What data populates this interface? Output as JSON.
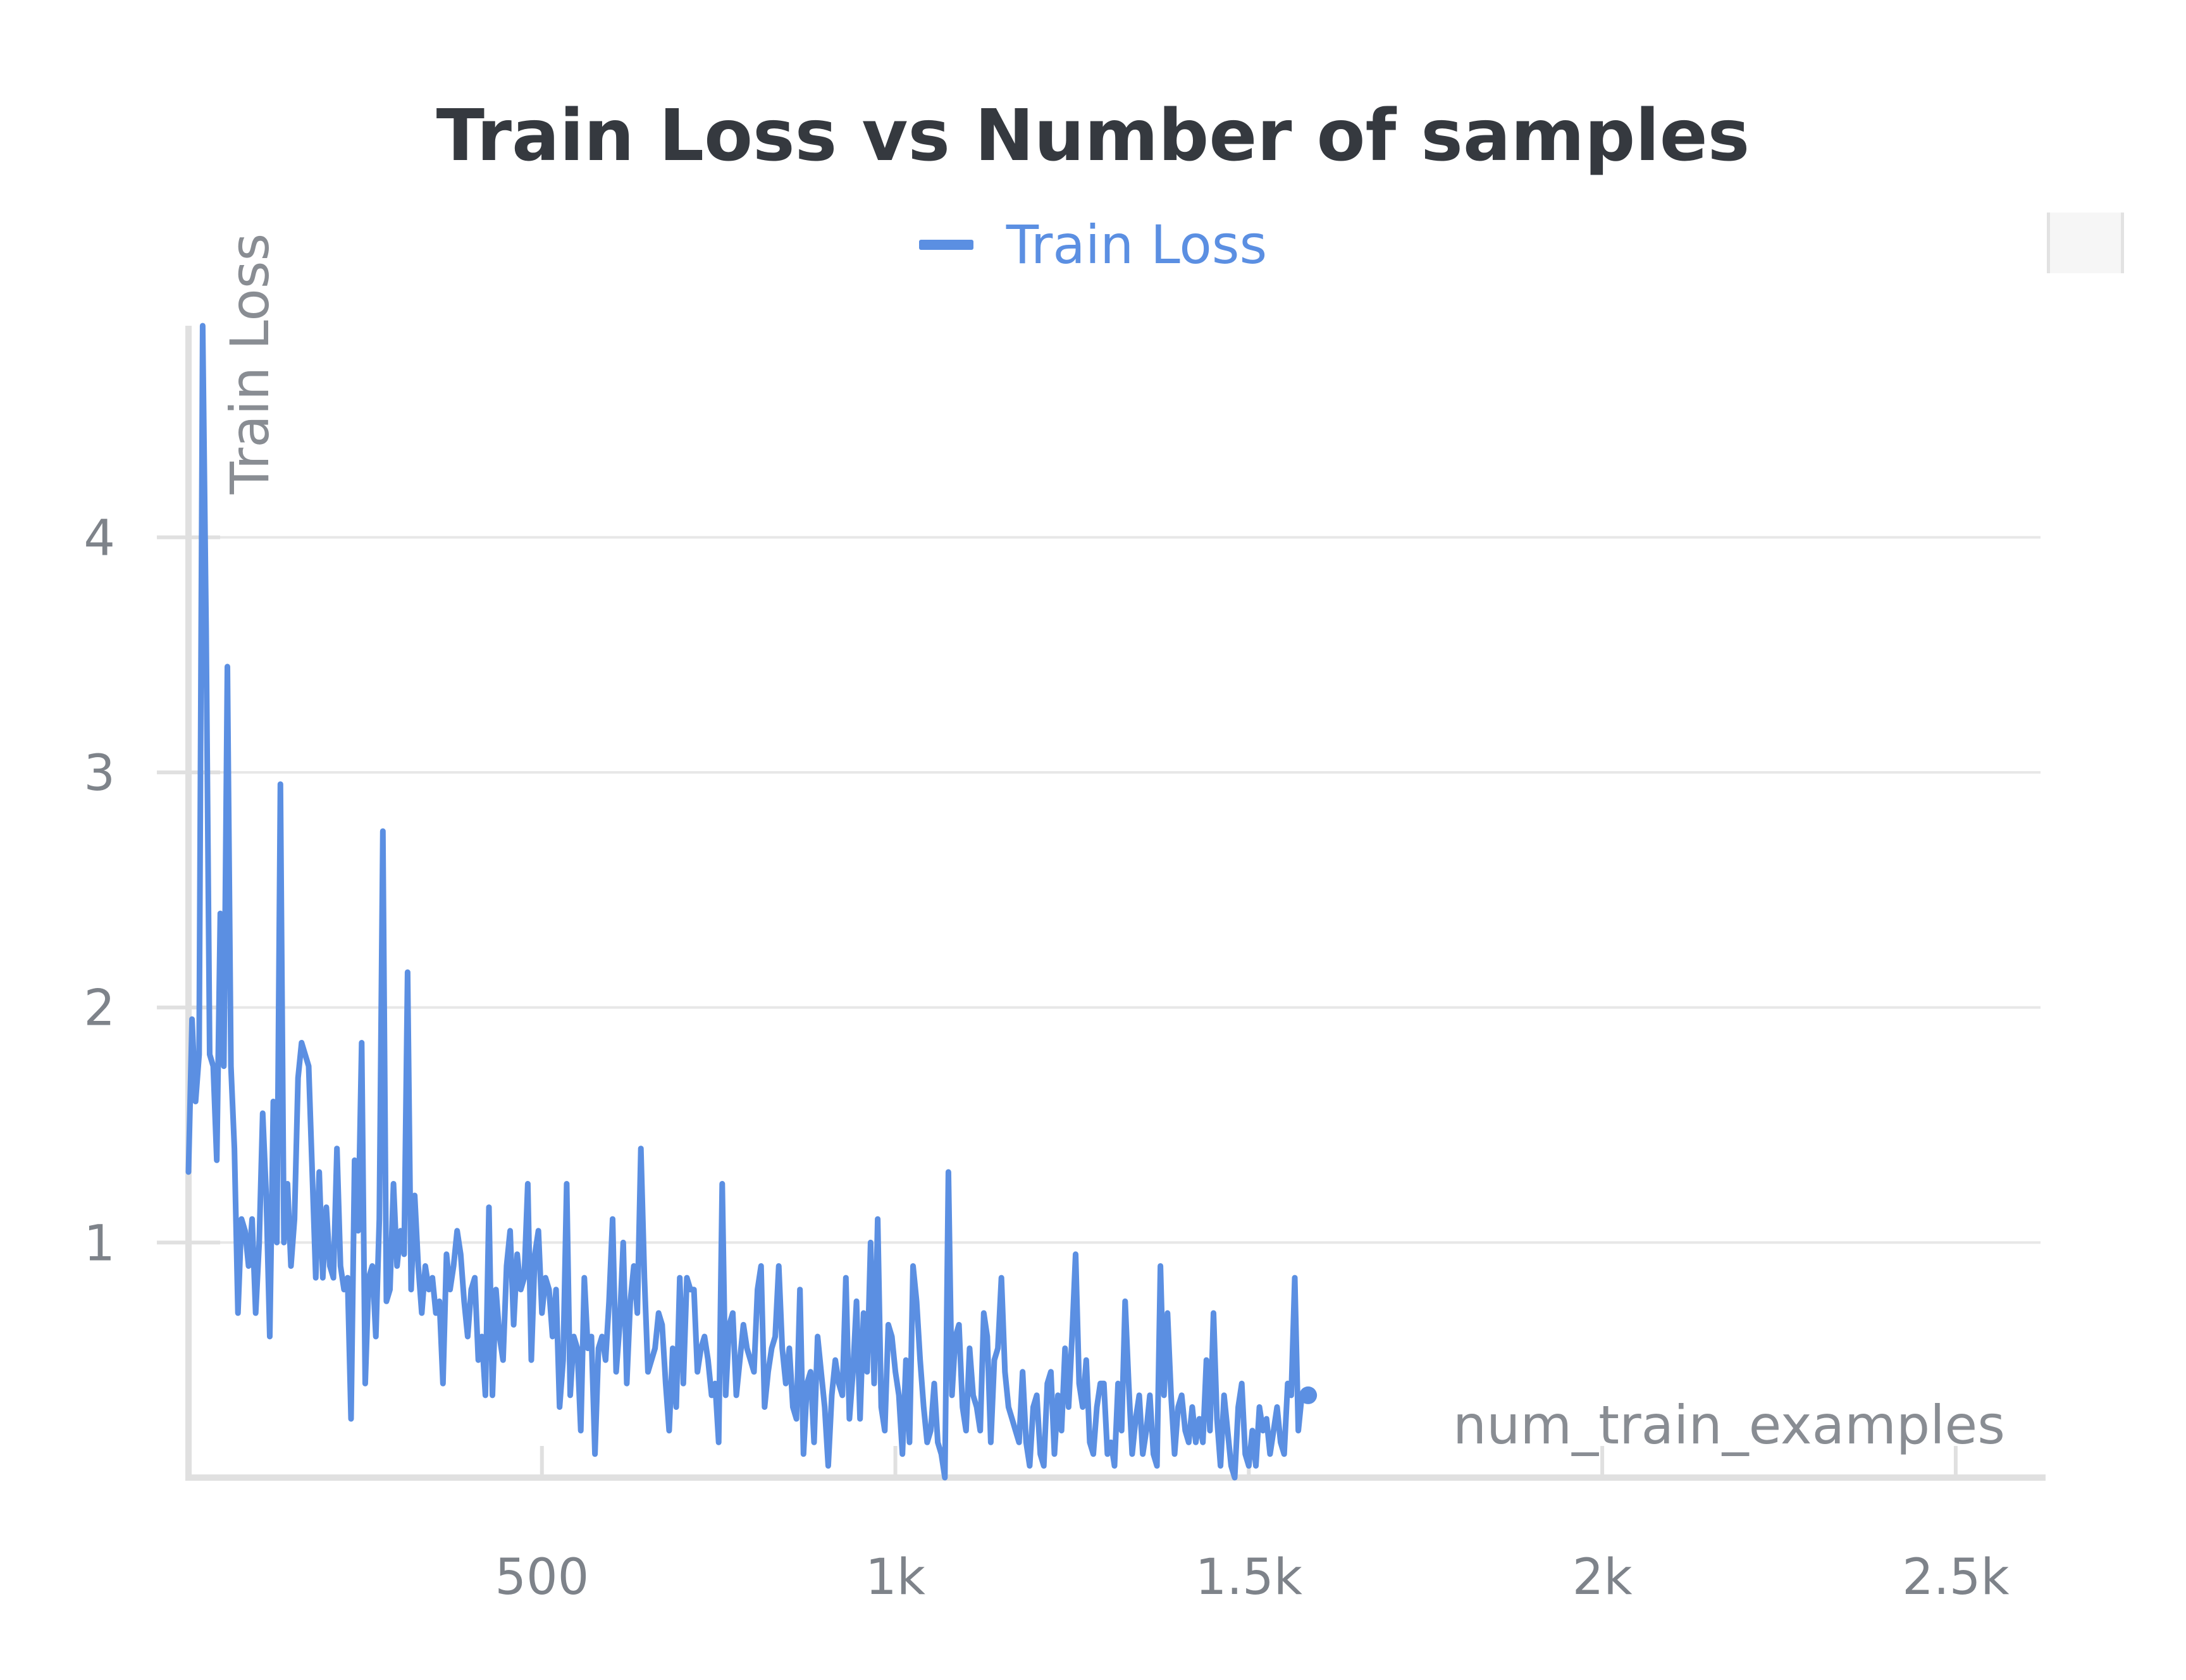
{
  "chart_data": {
    "type": "line",
    "title": "Train Loss vs Number of samples",
    "xlabel": "num_train_examples",
    "ylabel": "Train Loss",
    "xlim": [
      0,
      2620
    ],
    "ylim": [
      0,
      4.9
    ],
    "x_ticks": [
      {
        "value": 500,
        "label": "500"
      },
      {
        "value": 1000,
        "label": "1k"
      },
      {
        "value": 1500,
        "label": "1.5k"
      },
      {
        "value": 2000,
        "label": "2k"
      },
      {
        "value": 2500,
        "label": "2.5k"
      }
    ],
    "y_ticks": [
      {
        "value": 1,
        "label": "1"
      },
      {
        "value": 2,
        "label": "2"
      },
      {
        "value": 3,
        "label": "3"
      },
      {
        "value": 4,
        "label": "4"
      }
    ],
    "grid": true,
    "legend": "top-center",
    "colors": {
      "line": "#5b8fe2"
    },
    "series": [
      {
        "name": "Train Loss",
        "x_step": 5,
        "end_marker": true,
        "values": [
          1.3,
          1.95,
          1.6,
          1.8,
          4.9,
          3.6,
          1.8,
          1.75,
          1.35,
          2.4,
          1.75,
          3.45,
          1.75,
          1.4,
          0.7,
          1.1,
          1.05,
          0.9,
          1.1,
          0.7,
          1.0,
          1.55,
          1.2,
          0.6,
          1.6,
          1.0,
          2.95,
          1.0,
          1.25,
          0.9,
          1.1,
          1.7,
          1.85,
          1.8,
          1.75,
          1.3,
          0.85,
          1.3,
          0.85,
          1.15,
          0.9,
          0.85,
          1.4,
          0.9,
          0.8,
          0.85,
          0.25,
          1.35,
          1.05,
          1.85,
          0.4,
          0.85,
          0.9,
          0.6,
          1.1,
          2.75,
          0.75,
          0.8,
          1.25,
          0.9,
          1.05,
          0.95,
          2.15,
          0.8,
          1.2,
          0.9,
          0.7,
          0.9,
          0.8,
          0.85,
          0.7,
          0.75,
          0.4,
          0.95,
          0.8,
          0.9,
          1.05,
          0.95,
          0.75,
          0.6,
          0.8,
          0.85,
          0.5,
          0.6,
          0.35,
          1.15,
          0.35,
          0.8,
          0.6,
          0.5,
          0.9,
          1.05,
          0.65,
          0.95,
          0.8,
          0.85,
          1.25,
          0.5,
          0.95,
          1.05,
          0.7,
          0.85,
          0.8,
          0.6,
          0.8,
          0.3,
          0.5,
          1.25,
          0.35,
          0.6,
          0.55,
          0.2,
          0.85,
          0.55,
          0.6,
          0.1,
          0.55,
          0.6,
          0.5,
          0.75,
          1.1,
          0.45,
          0.65,
          1.0,
          0.4,
          0.75,
          0.9,
          0.7,
          1.4,
          0.85,
          0.45,
          0.5,
          0.55,
          0.7,
          0.65,
          0.4,
          0.2,
          0.55,
          0.3,
          0.85,
          0.4,
          0.85,
          0.8,
          0.8,
          0.45,
          0.55,
          0.6,
          0.5,
          0.35,
          0.4,
          0.15,
          1.25,
          0.35,
          0.65,
          0.7,
          0.35,
          0.5,
          0.65,
          0.55,
          0.5,
          0.45,
          0.8,
          0.9,
          0.3,
          0.45,
          0.55,
          0.6,
          0.9,
          0.55,
          0.4,
          0.55,
          0.3,
          0.25,
          0.8,
          0.1,
          0.4,
          0.45,
          0.15,
          0.6,
          0.45,
          0.3,
          0.05,
          0.35,
          0.5,
          0.4,
          0.35,
          0.85,
          0.25,
          0.45,
          0.75,
          0.25,
          0.7,
          0.45,
          1.0,
          0.4,
          1.1,
          0.3,
          0.2,
          0.65,
          0.6,
          0.45,
          0.35,
          0.1,
          0.5,
          0.15,
          0.9,
          0.75,
          0.5,
          0.3,
          0.15,
          0.2,
          0.4,
          0.15,
          0.1,
          0.0,
          1.3,
          0.35,
          0.6,
          0.65,
          0.3,
          0.2,
          0.55,
          0.35,
          0.3,
          0.2,
          0.7,
          0.6,
          0.15,
          0.5,
          0.55,
          0.85,
          0.45,
          0.3,
          0.25,
          0.2,
          0.15,
          0.45,
          0.15,
          0.05,
          0.3,
          0.35,
          0.1,
          0.05,
          0.4,
          0.45,
          0.1,
          0.35,
          0.2,
          0.55,
          0.3,
          0.6,
          0.95,
          0.4,
          0.3,
          0.5,
          0.15,
          0.1,
          0.3,
          0.4,
          0.4,
          0.1,
          0.15,
          0.05,
          0.4,
          0.2,
          0.75,
          0.4,
          0.1,
          0.25,
          0.35,
          0.1,
          0.2,
          0.35,
          0.1,
          0.05,
          0.9,
          0.35,
          0.7,
          0.35,
          0.1,
          0.3,
          0.35,
          0.2,
          0.15,
          0.3,
          0.15,
          0.25,
          0.15,
          0.5,
          0.2,
          0.7,
          0.25,
          0.05,
          0.35,
          0.2,
          0.05,
          0.0,
          0.3,
          0.4,
          0.1,
          0.05,
          0.2,
          0.05,
          0.3,
          0.2,
          0.25,
          0.1,
          0.2,
          0.3,
          0.15,
          0.1,
          0.4,
          0.35,
          0.85,
          0.2,
          0.35
        ]
      }
    ]
  }
}
